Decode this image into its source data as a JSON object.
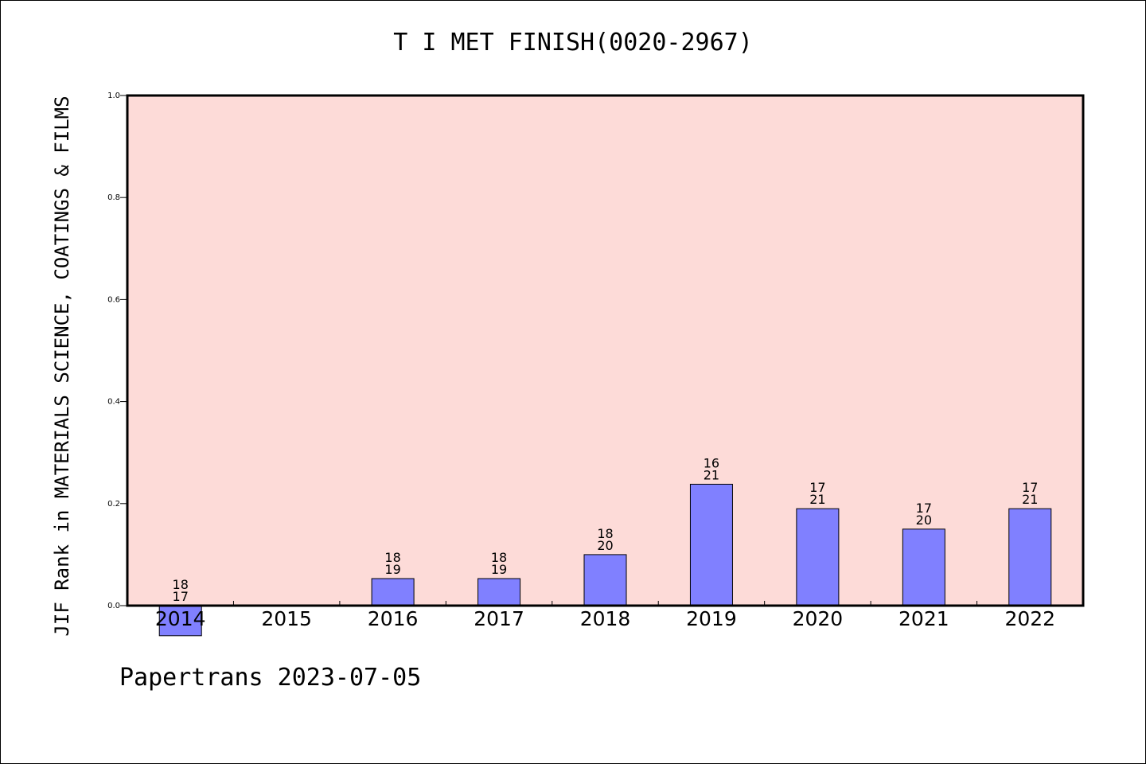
{
  "chart_data": {
    "type": "bar",
    "title": "T I MET FINISH(0020-2967)",
    "ylabel": "JIF Rank in MATERIALS SCIENCE, COATINGS & FILMS",
    "xlabel": "",
    "footer": "Papertrans 2023-07-05",
    "categories": [
      "2014",
      "2015",
      "2016",
      "2017",
      "2018",
      "2019",
      "2020",
      "2021",
      "2022"
    ],
    "values": [
      -0.059,
      null,
      0.053,
      0.053,
      0.1,
      0.238,
      0.19,
      0.15,
      0.19
    ],
    "labels_top": [
      "18",
      "",
      "18",
      "18",
      "18",
      "16",
      "17",
      "17",
      "17"
    ],
    "labels_bottom": [
      "17",
      "",
      "19",
      "19",
      "20",
      "21",
      "21",
      "20",
      "21"
    ],
    "ylim": [
      0.0,
      1.0
    ],
    "yticks": [
      "0.0",
      "0.2",
      "0.4",
      "0.6",
      "0.8",
      "1.0"
    ],
    "colors": {
      "bar": "#8080ff",
      "plot_bg": "#fddbd8"
    },
    "grid": false,
    "legend": "none"
  }
}
